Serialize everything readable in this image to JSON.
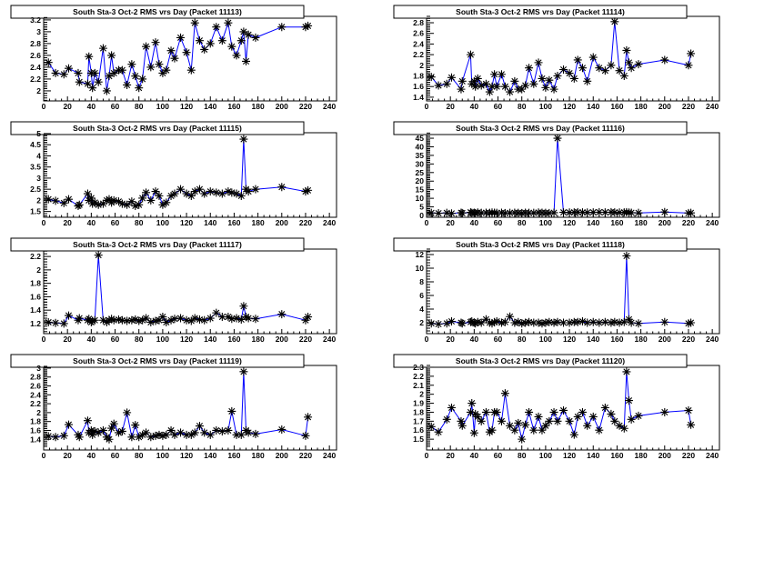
{
  "colors": {
    "line": "#0000ff",
    "marker": "#000000",
    "frame": "#000000",
    "background": "#ffffff"
  },
  "chart_data": [
    {
      "type": "line",
      "title": "South Sta-3 Oct-2 RMS vrs Day (Packet 11113)",
      "xlim": [
        0,
        246
      ],
      "ylim": [
        1.83,
        3.26
      ],
      "xticks": [
        "0",
        "20",
        "40",
        "60",
        "80",
        "100",
        "120",
        "140",
        "160",
        "180",
        "200",
        "220",
        "240"
      ],
      "yticks": [
        "2",
        "2.2",
        "2.4",
        "2.6",
        "2.8",
        "3",
        "3.2"
      ],
      "y": [
        2.48,
        2.3,
        2.28,
        2.38,
        2.3,
        2.15,
        2.12,
        2.58,
        2.3,
        2.05,
        2.3,
        2.15,
        2.72,
        2.0,
        2.25,
        2.6,
        2.3,
        2.35,
        2.35,
        2.1,
        2.45,
        2.25,
        2.05,
        2.2,
        2.75,
        2.4,
        2.82,
        2.45,
        2.3,
        2.35,
        2.68,
        2.55,
        2.9,
        2.65,
        2.35,
        3.15,
        2.85,
        2.7,
        2.8,
        3.08,
        2.85,
        3.15,
        2.75,
        2.6,
        2.85,
        3.0,
        2.5,
        2.95,
        2.9,
        3.08,
        3.08,
        3.1
      ]
    },
    {
      "type": "line",
      "title": "South Sta-3 Oct-2 RMS vrs Day (Packet 11114)",
      "xlim": [
        0,
        246
      ],
      "ylim": [
        1.33,
        2.92
      ],
      "xticks": [
        "0",
        "20",
        "40",
        "60",
        "80",
        "100",
        "120",
        "140",
        "160",
        "180",
        "200",
        "220",
        "240"
      ],
      "yticks": [
        "1.4",
        "1.6",
        "1.8",
        "2",
        "2.2",
        "2.4",
        "2.6",
        "2.8"
      ],
      "y": [
        1.78,
        1.62,
        1.65,
        1.77,
        1.55,
        1.7,
        2.2,
        1.65,
        1.7,
        1.6,
        1.75,
        1.62,
        1.65,
        1.5,
        1.6,
        1.83,
        1.6,
        1.83,
        1.6,
        1.5,
        1.7,
        1.55,
        1.55,
        1.62,
        1.95,
        1.65,
        2.05,
        1.75,
        1.58,
        1.72,
        1.55,
        1.8,
        1.92,
        1.85,
        1.75,
        2.1,
        1.95,
        1.7,
        2.15,
        1.95,
        1.9,
        2.0,
        2.82,
        1.9,
        1.8,
        2.28,
        2.05,
        1.95,
        2.02,
        2.1,
        2.0,
        2.22
      ]
    },
    {
      "type": "line",
      "title": "South Sta-3 Oct-2 RMS vrs Day (Packet 11115)",
      "xlim": [
        0,
        246
      ],
      "ylim": [
        1.24,
        5.04
      ],
      "xticks": [
        "0",
        "20",
        "40",
        "60",
        "80",
        "100",
        "120",
        "140",
        "160",
        "180",
        "200",
        "220",
        "240"
      ],
      "yticks": [
        "1.5",
        "2",
        "2.5",
        "3",
        "3.5",
        "4",
        "4.5",
        "5"
      ],
      "y": [
        2.05,
        1.98,
        1.88,
        2.05,
        1.75,
        1.8,
        2.3,
        2.0,
        2.1,
        1.85,
        1.9,
        1.8,
        1.85,
        2.0,
        2.05,
        1.9,
        2.0,
        1.95,
        1.85,
        1.8,
        1.95,
        1.75,
        1.8,
        2.1,
        2.35,
        2.0,
        2.4,
        2.2,
        1.8,
        1.9,
        2.2,
        2.3,
        2.5,
        2.3,
        2.2,
        2.4,
        2.5,
        2.3,
        2.4,
        2.35,
        2.3,
        2.4,
        2.35,
        2.3,
        2.2,
        4.75,
        2.5,
        2.4,
        2.5,
        2.6,
        2.4,
        2.45
      ]
    },
    {
      "type": "line",
      "title": "South Sta-3 Oct-2 RMS vrs Day (Packet 11116)",
      "xlim": [
        0,
        246
      ],
      "ylim": [
        -1.06,
        48.2
      ],
      "xticks": [
        "0",
        "20",
        "40",
        "60",
        "80",
        "100",
        "120",
        "140",
        "160",
        "180",
        "200",
        "220",
        "240"
      ],
      "yticks": [
        "0",
        "5",
        "10",
        "15",
        "20",
        "25",
        "30",
        "35",
        "40",
        "45"
      ],
      "y": [
        1.5,
        1.3,
        1.5,
        1.2,
        1.6,
        1.4,
        1.8,
        1.5,
        1.6,
        1.4,
        1.7,
        1.5,
        1.6,
        1.5,
        1.7,
        1.6,
        1.5,
        1.6,
        1.4,
        1.5,
        1.6,
        1.5,
        1.4,
        1.6,
        1.5,
        1.5,
        1.7,
        1.6,
        1.5,
        1.4,
        1.6,
        45,
        1.8,
        1.7,
        1.8,
        1.9,
        1.8,
        1.7,
        1.8,
        1.9,
        1.8,
        1.9,
        1.8,
        1.7,
        1.8,
        1.9,
        1.7,
        1.6,
        1.5,
        2.0,
        1.4,
        1.5
      ]
    },
    {
      "type": "line",
      "title": "South Sta-3 Oct-2 RMS vrs Day (Packet 11117)",
      "xlim": [
        0,
        246
      ],
      "ylim": [
        1.05,
        2.31
      ],
      "xticks": [
        "0",
        "20",
        "40",
        "60",
        "80",
        "100",
        "120",
        "140",
        "160",
        "180",
        "200",
        "220",
        "240"
      ],
      "yticks": [
        "1.2",
        "1.4",
        "1.6",
        "1.8",
        "2",
        "2.2"
      ],
      "y": [
        1.22,
        1.21,
        1.2,
        1.32,
        1.25,
        1.28,
        1.25,
        1.27,
        1.22,
        1.24,
        1.25,
        2.22,
        1.25,
        1.22,
        1.25,
        1.27,
        1.25,
        1.26,
        1.25,
        1.24,
        1.25,
        1.26,
        1.24,
        1.25,
        1.28,
        1.22,
        1.24,
        1.25,
        1.3,
        1.22,
        1.25,
        1.27,
        1.28,
        1.25,
        1.24,
        1.28,
        1.26,
        1.25,
        1.28,
        1.36,
        1.3,
        1.3,
        1.27,
        1.28,
        1.26,
        1.46,
        1.3,
        1.28,
        1.27,
        1.34,
        1.25,
        1.3
      ]
    },
    {
      "type": "line",
      "title": "South Sta-3 Oct-2 RMS vrs Day (Packet 11118)",
      "xlim": [
        0,
        246
      ],
      "ylim": [
        0.4,
        12.8
      ],
      "xticks": [
        "0",
        "20",
        "40",
        "60",
        "80",
        "100",
        "120",
        "140",
        "160",
        "180",
        "200",
        "220",
        "240"
      ],
      "yticks": [
        "2",
        "4",
        "6",
        "8",
        "10",
        "12"
      ],
      "y": [
        1.9,
        1.8,
        1.9,
        2.2,
        2.0,
        1.9,
        2.1,
        2.2,
        2.0,
        1.9,
        2.1,
        2.0,
        2.5,
        2.0,
        1.9,
        2.1,
        2.2,
        2.0,
        2.1,
        2.9,
        2.0,
        2.1,
        1.9,
        2.0,
        2.1,
        2.0,
        2.0,
        1.9,
        2.0,
        2.1,
        2.0,
        2.1,
        2.0,
        2.0,
        2.1,
        2.1,
        2.2,
        2.0,
        2.1,
        2.0,
        2.1,
        2.0,
        2.1,
        2.0,
        2.1,
        11.8,
        2.5,
        2.0,
        1.9,
        2.1,
        1.9,
        2.0
      ]
    },
    {
      "type": "line",
      "title": "South Sta-3 Oct-2 RMS vrs Day (Packet 11119)",
      "xlim": [
        0,
        246
      ],
      "ylim": [
        1.16,
        3.06
      ],
      "xticks": [
        "0",
        "20",
        "40",
        "60",
        "80",
        "100",
        "120",
        "140",
        "160",
        "180",
        "200",
        "220",
        "240"
      ],
      "yticks": [
        "1.4",
        "1.6",
        "1.8",
        "2",
        "2.2",
        "2.4",
        "2.6",
        "2.8",
        "3"
      ],
      "y": [
        1.47,
        1.45,
        1.48,
        1.73,
        1.5,
        1.45,
        1.82,
        1.55,
        1.6,
        1.5,
        1.58,
        1.55,
        1.6,
        1.45,
        1.4,
        1.65,
        1.75,
        1.55,
        1.58,
        2.0,
        1.45,
        1.72,
        1.45,
        1.5,
        1.55,
        1.45,
        1.48,
        1.5,
        1.48,
        1.5,
        1.6,
        1.5,
        1.55,
        1.5,
        1.5,
        1.55,
        1.7,
        1.55,
        1.5,
        1.6,
        1.58,
        1.6,
        2.03,
        1.5,
        1.5,
        2.92,
        1.6,
        1.55,
        1.52,
        1.62,
        1.48,
        1.9
      ]
    },
    {
      "type": "line",
      "title": "South Sta-3 Oct-2 RMS vrs Day (Packet 11120)",
      "xlim": [
        0,
        246
      ],
      "ylim": [
        1.38,
        2.32
      ],
      "xticks": [
        "0",
        "20",
        "40",
        "60",
        "80",
        "100",
        "120",
        "140",
        "160",
        "180",
        "200",
        "220",
        "240"
      ],
      "yticks": [
        "1.5",
        "1.6",
        "1.7",
        "1.8",
        "1.9",
        "2",
        "2.1",
        "2.2",
        "2.3"
      ],
      "y": [
        1.64,
        1.58,
        1.72,
        1.85,
        1.7,
        1.65,
        1.8,
        1.9,
        1.57,
        1.78,
        1.75,
        1.7,
        1.8,
        1.58,
        1.6,
        1.8,
        1.8,
        1.7,
        2.01,
        1.65,
        1.6,
        1.68,
        1.5,
        1.66,
        1.8,
        1.6,
        1.75,
        1.6,
        1.65,
        1.7,
        1.8,
        1.7,
        1.82,
        1.7,
        1.55,
        1.75,
        1.8,
        1.65,
        1.75,
        1.6,
        1.85,
        1.78,
        1.7,
        1.65,
        1.62,
        2.25,
        1.93,
        1.72,
        1.76,
        1.8,
        1.82,
        1.66
      ]
    }
  ],
  "x": [
    4,
    10,
    17,
    21,
    29,
    30,
    37,
    38,
    40,
    41,
    43,
    46,
    50,
    53,
    55,
    57,
    59,
    63,
    66,
    70,
    74,
    77,
    80,
    83,
    86,
    90,
    94,
    97,
    100,
    103,
    107,
    110,
    115,
    120,
    124,
    127,
    131,
    135,
    140,
    145,
    150,
    155,
    158,
    162,
    166,
    168,
    170,
    172,
    178,
    200,
    220,
    222
  ]
}
